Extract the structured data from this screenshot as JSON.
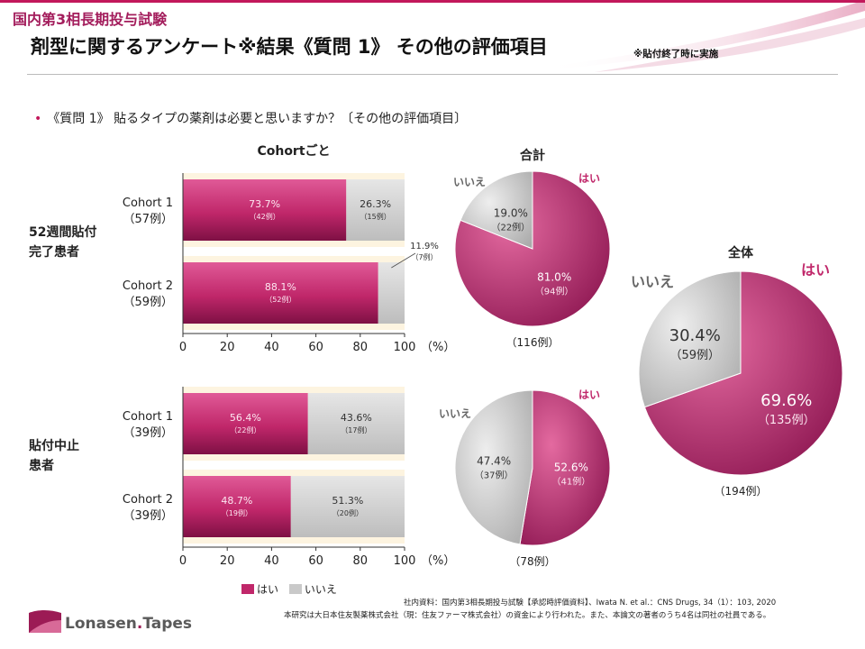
{
  "header": {
    "trial_label": "国内第3相長期投与試験",
    "title": "剤型に関するアンケート※結果《質問 1》 その他の評価項目",
    "title_note": "※貼付終了時に実施",
    "question": "《質問 1》 貼るタイプの薬剤は必要と思いますか？〔その他の評価項目〕"
  },
  "colors": {
    "yes": "#c0276a",
    "yes_dark": "#7e1044",
    "no": "#c9c9c9",
    "band": "#fdf4e0",
    "brand": "#a31d5c"
  },
  "legend": {
    "yes": "はい",
    "no": "いいえ"
  },
  "chart_data": [
    {
      "type": "bar",
      "orientation": "horizontal-stacked",
      "title": "Cohortごと",
      "group_label": [
        "52週間貼付",
        "完了患者"
      ],
      "categories": [
        [
          "Cohort 1",
          "（57例）"
        ],
        [
          "Cohort 2",
          "（59例）"
        ]
      ],
      "series": [
        {
          "name": "はい",
          "values": [
            73.7,
            88.1
          ],
          "labels": [
            "73.7%",
            "88.1%"
          ],
          "counts": [
            "（42例）",
            "（52例）"
          ]
        },
        {
          "name": "いいえ",
          "values": [
            26.3,
            11.9
          ],
          "labels": [
            "26.3%",
            "11.9%"
          ],
          "counts": [
            "（15例）",
            "（7例）"
          ]
        }
      ],
      "xlim": [
        0,
        100
      ],
      "xticks": [
        "0",
        "20",
        "40",
        "60",
        "80",
        "100"
      ],
      "xunit": "（%）"
    },
    {
      "type": "bar",
      "orientation": "horizontal-stacked",
      "group_label": [
        "貼付中止",
        "患者"
      ],
      "categories": [
        [
          "Cohort 1",
          "（39例）"
        ],
        [
          "Cohort 2",
          "（39例）"
        ]
      ],
      "series": [
        {
          "name": "はい",
          "values": [
            56.4,
            48.7
          ],
          "labels": [
            "56.4%",
            "48.7%"
          ],
          "counts": [
            "（22例）",
            "（19例）"
          ]
        },
        {
          "name": "いいえ",
          "values": [
            43.6,
            51.3
          ],
          "labels": [
            "43.6%",
            "51.3%"
          ],
          "counts": [
            "（17例）",
            "（20例）"
          ]
        }
      ],
      "xlim": [
        0,
        100
      ],
      "xticks": [
        "0",
        "20",
        "40",
        "60",
        "80",
        "100"
      ],
      "xunit": "（%）"
    },
    {
      "type": "pie",
      "title": "合計",
      "labels": [
        "はい",
        "いいえ"
      ],
      "values": [
        81.0,
        19.0
      ],
      "value_labels": [
        "81.0%",
        "19.0%"
      ],
      "counts": [
        "（94例）",
        "（22例）"
      ],
      "total": "（116例）"
    },
    {
      "type": "pie",
      "labels": [
        "はい",
        "いいえ"
      ],
      "values": [
        52.6,
        47.4
      ],
      "value_labels": [
        "52.6%",
        "47.4%"
      ],
      "counts": [
        "（41例）",
        "（37例）"
      ],
      "total": "（78例）"
    },
    {
      "type": "pie",
      "title": "全体",
      "labels": [
        "はい",
        "いいえ"
      ],
      "values": [
        69.6,
        30.4
      ],
      "value_labels": [
        "69.6%",
        "30.4%"
      ],
      "counts": [
        "（135例）",
        "（59例）"
      ],
      "total": "（194例）"
    }
  ],
  "footer": {
    "source": "社内資料：国内第3相長期投与試験【承認時評価資料】、Iwata N. et al.：CNS Drugs, 34（1）：103, 2020",
    "funding": "本研究は大日本住友製薬株式会社（現：住友ファーマ株式会社）の資金により行われた。また、本論文の著者のうち4名は同社の社員である。",
    "logo_main": "Lonasen",
    "logo_dot": ".",
    "logo_sub": "Tapes"
  }
}
